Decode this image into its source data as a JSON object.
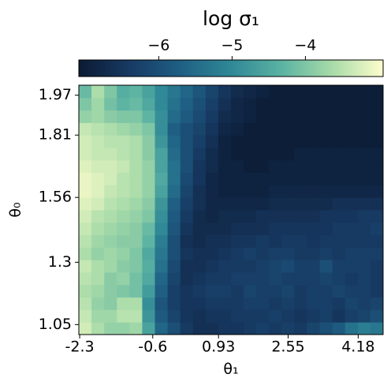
{
  "chart_data": {
    "type": "heatmap",
    "title": "log σ₁",
    "xlabel": "θ₁",
    "ylabel": "θ₀",
    "xlim": [
      -2.32,
      4.76
    ],
    "ylim": [
      1.01,
      2.01
    ],
    "xticks": [
      -2.3,
      -0.6,
      0.93,
      2.55,
      4.18
    ],
    "yticks": [
      1.05,
      1.3,
      1.56,
      1.81,
      1.97
    ],
    "clim": [
      -7.09,
      -2.94
    ],
    "cticks": [
      {
        "value": -6,
        "label": "−6"
      },
      {
        "value": -5,
        "label": "−5"
      },
      {
        "value": -4,
        "label": "−4"
      }
    ],
    "colormap": [
      "#0b1a33",
      "#173a63",
      "#1f5f84",
      "#2f8896",
      "#5bb3a3",
      "#a8dba8",
      "#fdfecc"
    ],
    "z": [
      [
        -3.3,
        -3.6,
        -3.8,
        -3.8,
        -3.7,
        -4.6,
        -5.6,
        -6.0,
        -6.4,
        -6.6,
        -6.6,
        -6.5,
        -6.5,
        -6.4,
        -6.3,
        -6.4,
        -6.3,
        -6.4,
        -6.2,
        -6.0,
        -5.8,
        -5.4,
        -5.2,
        -5.3
      ],
      [
        -3.4,
        -3.7,
        -3.7,
        -3.5,
        -3.5,
        -4.8,
        -5.8,
        -6.2,
        -6.5,
        -6.6,
        -6.5,
        -6.5,
        -6.4,
        -6.4,
        -6.4,
        -6.3,
        -6.4,
        -6.5,
        -6.4,
        -6.3,
        -6.5,
        -6.3,
        -6.2,
        -6.0
      ],
      [
        -3.5,
        -3.8,
        -3.9,
        -3.6,
        -3.6,
        -4.9,
        -5.9,
        -6.3,
        -6.5,
        -6.5,
        -6.4,
        -6.4,
        -6.4,
        -6.3,
        -6.3,
        -6.4,
        -6.3,
        -6.4,
        -6.3,
        -6.3,
        -6.4,
        -6.2,
        -6.3,
        -6.2
      ],
      [
        -3.6,
        -3.7,
        -3.9,
        -4.0,
        -4.1,
        -4.7,
        -5.7,
        -6.3,
        -6.5,
        -6.4,
        -6.3,
        -6.3,
        -6.4,
        -6.2,
        -6.3,
        -6.3,
        -6.2,
        -6.4,
        -6.3,
        -6.3,
        -6.2,
        -6.3,
        -6.3,
        -6.4
      ],
      [
        -3.5,
        -3.6,
        -3.9,
        -3.8,
        -4.1,
        -4.5,
        -5.6,
        -6.2,
        -6.6,
        -6.5,
        -6.4,
        -6.4,
        -6.3,
        -6.3,
        -6.3,
        -6.2,
        -6.3,
        -6.3,
        -6.3,
        -6.2,
        -6.3,
        -6.4,
        -6.3,
        -6.4
      ],
      [
        -3.4,
        -3.6,
        -3.7,
        -3.9,
        -4.0,
        -4.4,
        -5.4,
        -6.1,
        -6.6,
        -6.6,
        -6.5,
        -6.4,
        -6.4,
        -6.4,
        -6.3,
        -6.2,
        -6.1,
        -6.3,
        -6.3,
        -6.0,
        -6.3,
        -6.3,
        -6.3,
        -6.4
      ],
      [
        -3.6,
        -3.8,
        -3.7,
        -3.8,
        -4.0,
        -4.5,
        -5.3,
        -6.0,
        -6.5,
        -6.6,
        -6.6,
        -6.5,
        -6.4,
        -6.3,
        -6.4,
        -6.3,
        -6.3,
        -6.4,
        -6.4,
        -6.3,
        -6.4,
        -6.3,
        -6.3,
        -6.3
      ],
      [
        -3.5,
        -3.7,
        -3.8,
        -3.9,
        -3.9,
        -4.3,
        -5.2,
        -6.0,
        -6.6,
        -6.7,
        -6.6,
        -6.6,
        -6.5,
        -6.5,
        -6.4,
        -6.5,
        -6.4,
        -6.4,
        -6.5,
        -6.4,
        -6.4,
        -6.4,
        -6.4,
        -6.4
      ],
      [
        -3.4,
        -3.6,
        -3.7,
        -3.8,
        -3.9,
        -4.2,
        -5.0,
        -5.9,
        -6.5,
        -6.7,
        -6.7,
        -6.7,
        -6.6,
        -6.6,
        -6.6,
        -6.5,
        -6.5,
        -6.5,
        -6.5,
        -6.5,
        -6.4,
        -6.4,
        -6.4,
        -6.3
      ],
      [
        -3.3,
        -3.5,
        -3.6,
        -3.7,
        -3.8,
        -4.0,
        -4.9,
        -5.8,
        -6.4,
        -6.7,
        -6.8,
        -6.7,
        -6.7,
        -6.7,
        -6.6,
        -6.6,
        -6.6,
        -6.6,
        -6.6,
        -6.5,
        -6.5,
        -6.5,
        -6.4,
        -6.4
      ],
      [
        -3.2,
        -3.3,
        -3.5,
        -3.6,
        -3.7,
        -3.9,
        -4.8,
        -5.7,
        -6.3,
        -6.6,
        -6.8,
        -6.8,
        -6.8,
        -6.8,
        -6.8,
        -6.7,
        -6.7,
        -6.7,
        -6.7,
        -6.7,
        -6.6,
        -6.6,
        -6.6,
        -6.6
      ],
      [
        -3.1,
        -3.2,
        -3.4,
        -3.5,
        -3.6,
        -3.8,
        -4.6,
        -5.5,
        -6.2,
        -6.6,
        -6.8,
        -6.9,
        -6.9,
        -6.9,
        -6.9,
        -6.8,
        -6.8,
        -6.8,
        -6.8,
        -6.8,
        -6.8,
        -6.8,
        -6.8,
        -6.8
      ],
      [
        -3.1,
        -3.2,
        -3.3,
        -3.5,
        -3.6,
        -3.8,
        -4.5,
        -5.4,
        -6.1,
        -6.5,
        -6.8,
        -6.9,
        -6.9,
        -6.9,
        -6.9,
        -6.9,
        -6.9,
        -6.9,
        -6.9,
        -6.9,
        -6.9,
        -6.9,
        -6.9,
        -6.9
      ],
      [
        -3.2,
        -3.3,
        -3.3,
        -3.4,
        -3.6,
        -3.8,
        -4.6,
        -5.4,
        -6.0,
        -6.5,
        -6.7,
        -6.9,
        -6.9,
        -7.0,
        -7.0,
        -6.9,
        -6.9,
        -6.9,
        -6.9,
        -6.9,
        -6.9,
        -6.9,
        -6.9,
        -6.9
      ],
      [
        -3.3,
        -3.4,
        -3.4,
        -3.5,
        -3.6,
        -3.9,
        -4.6,
        -5.5,
        -6.0,
        -6.4,
        -6.7,
        -6.9,
        -7.0,
        -7.0,
        -7.0,
        -7.0,
        -7.0,
        -6.9,
        -6.9,
        -6.9,
        -6.9,
        -6.9,
        -6.9,
        -6.9
      ],
      [
        -3.3,
        -3.4,
        -3.5,
        -3.5,
        -3.6,
        -3.9,
        -4.8,
        -5.6,
        -6.0,
        -6.3,
        -6.6,
        -6.9,
        -7.0,
        -7.0,
        -7.0,
        -7.0,
        -7.0,
        -7.0,
        -7.0,
        -7.0,
        -7.0,
        -7.0,
        -7.0,
        -7.0
      ],
      [
        -3.4,
        -3.5,
        -3.6,
        -3.7,
        -3.8,
        -4.0,
        -4.9,
        -5.7,
        -6.0,
        -6.2,
        -6.5,
        -6.8,
        -6.9,
        -7.0,
        -7.0,
        -7.0,
        -7.0,
        -7.0,
        -7.0,
        -7.0,
        -7.0,
        -7.0,
        -7.0,
        -7.0
      ],
      [
        -3.8,
        -3.7,
        -3.9,
        -4.0,
        -4.0,
        -4.3,
        -4.9,
        -5.5,
        -5.8,
        -6.1,
        -6.4,
        -6.7,
        -6.8,
        -6.9,
        -7.0,
        -7.0,
        -7.0,
        -7.0,
        -7.0,
        -7.0,
        -7.0,
        -7.0,
        -7.0,
        -7.0
      ],
      [
        -4.0,
        -3.7,
        -4.1,
        -4.3,
        -4.2,
        -4.5,
        -5.0,
        -5.4,
        -5.7,
        -6.0,
        -6.3,
        -6.6,
        -6.8,
        -6.9,
        -7.0,
        -7.0,
        -7.0,
        -7.0,
        -7.0,
        -7.0,
        -7.0,
        -7.0,
        -7.0,
        -7.0
      ],
      [
        -4.2,
        -3.6,
        -4.0,
        -4.4,
        -4.3,
        -4.6,
        -5.0,
        -5.3,
        -5.6,
        -5.9,
        -6.2,
        -6.5,
        -6.7,
        -6.8,
        -6.9,
        -7.0,
        -7.0,
        -7.0,
        -7.0,
        -7.0,
        -7.0,
        -7.0,
        -7.0,
        -7.0
      ]
    ]
  }
}
